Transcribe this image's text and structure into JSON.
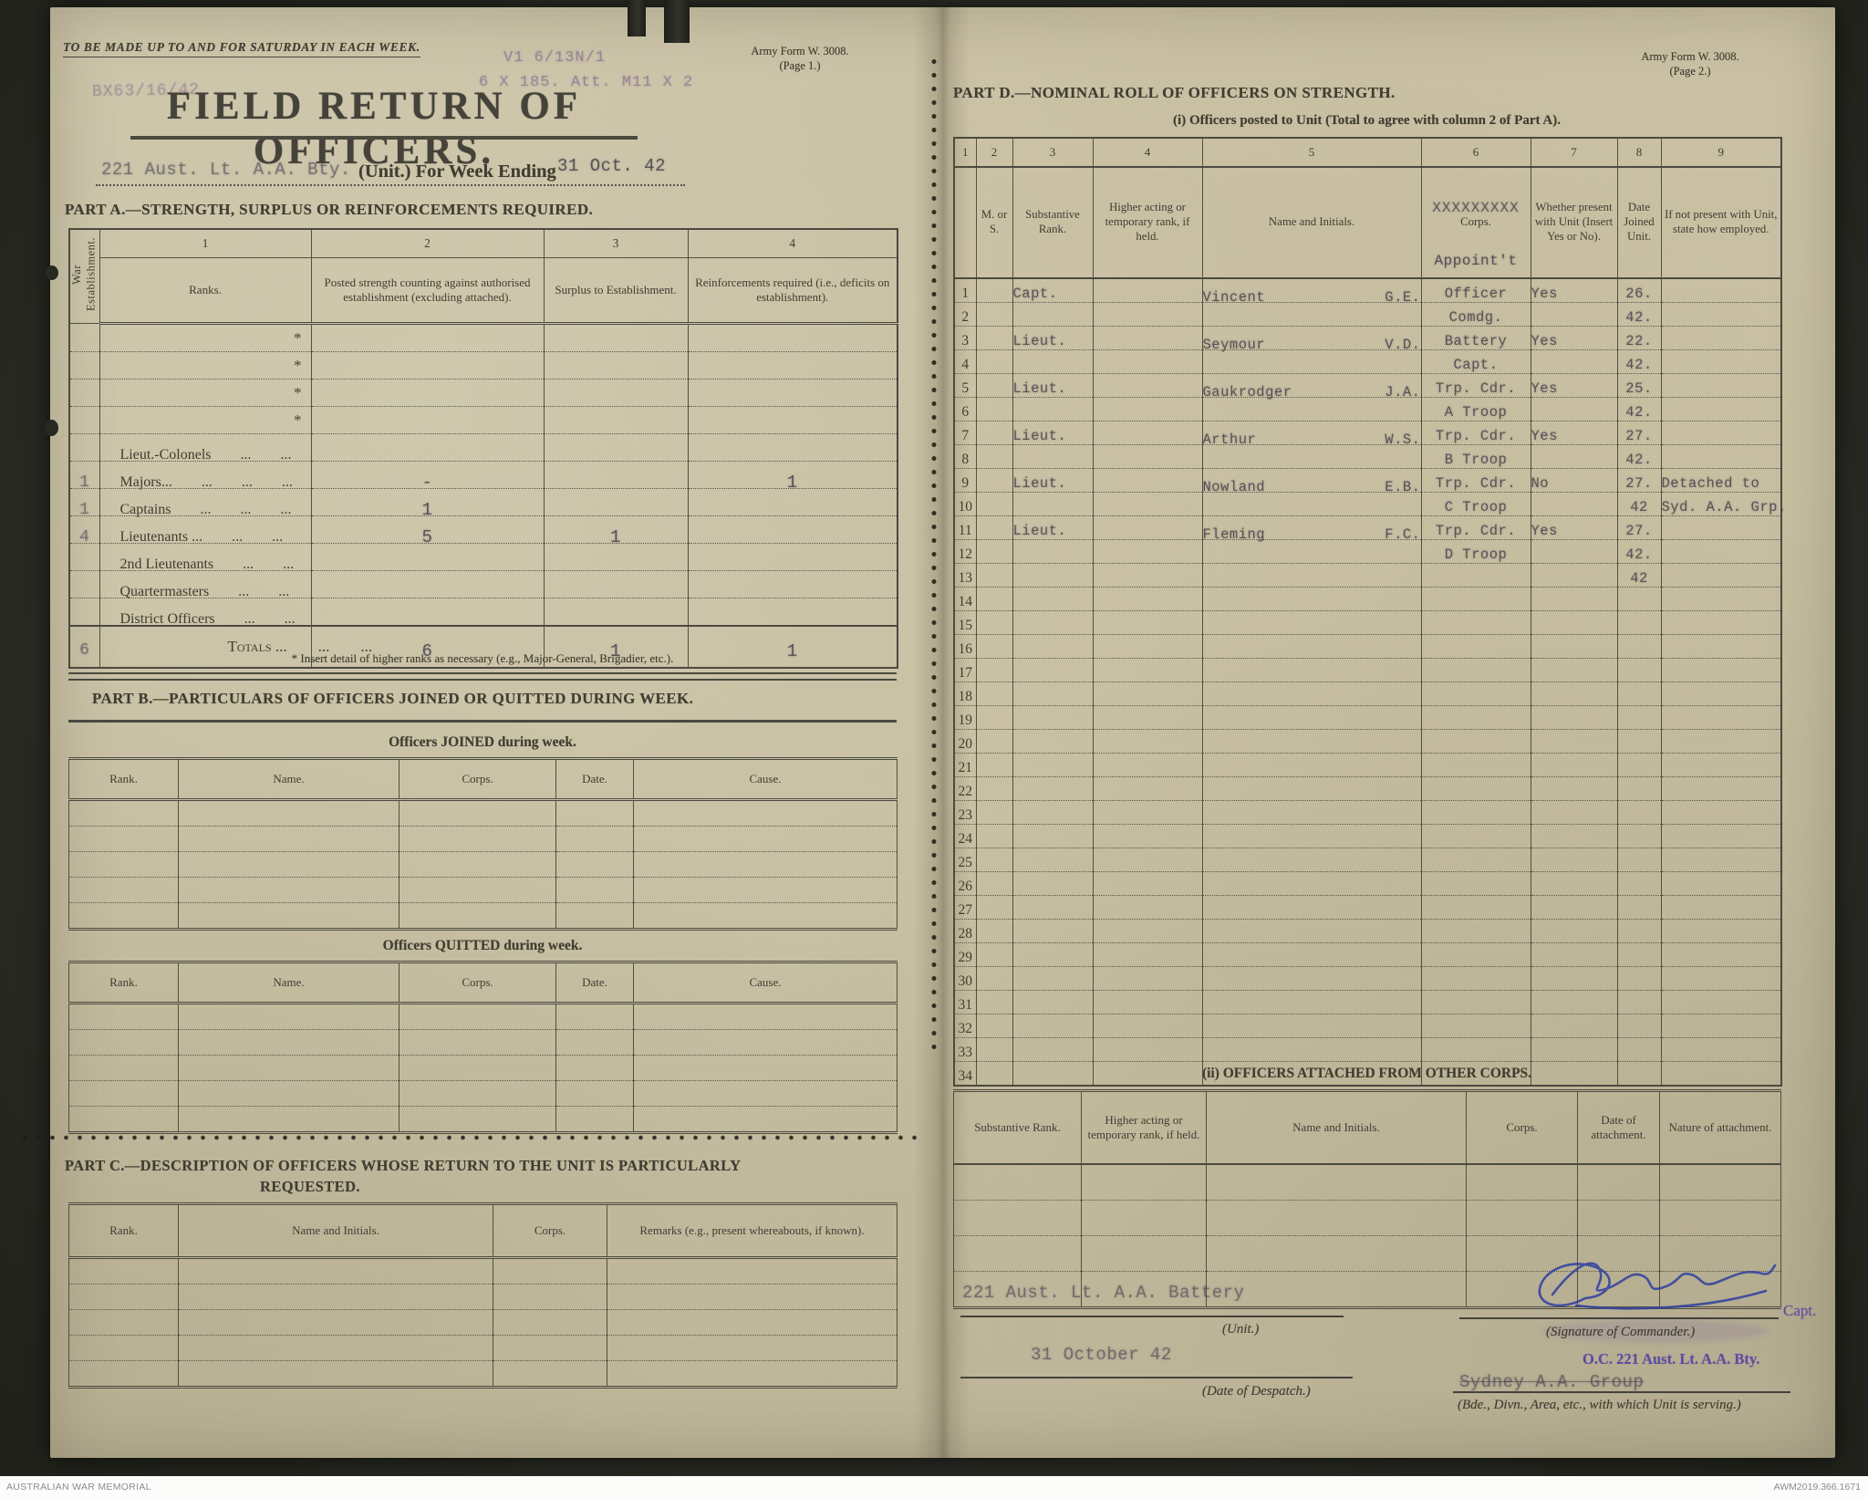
{
  "archive_bar": {
    "source": "AUSTRALIAN WAR MEMORIAL",
    "id": "AWM2019.366.1671"
  },
  "page1": {
    "form_ref": "Army Form W. 3008.",
    "form_page": "(Page 1.)",
    "top_note": "TO BE MADE UP TO AND FOR SATURDAY IN EACH WEEK.",
    "stamp_left": "BX63/16/42",
    "stamp_right_1": "V1 6/13N/1",
    "stamp_right_2": "6 X 185. Att. M11 X 2",
    "title": "FIELD RETURN OF OFFICERS.",
    "unit_value": "221 Aust. Lt. A.A. Bty.",
    "unit_label": "(Unit.) For Week Ending",
    "week_ending": "31 Oct. 42",
    "part_a": {
      "heading": "PART A.—STRENGTH, SURPLUS OR REINFORCEMENTS REQUIRED.",
      "war_establishment_label": "War Establishment.",
      "col_numbers": [
        "1",
        "2",
        "3",
        "4"
      ],
      "col_ranks": "Ranks.",
      "col_posted": "Posted strength counting against authorised establishment (excluding attached).",
      "col_surplus": "Surplus to Establishment.",
      "col_reinforcements": "Reinforcements required (i.e., deficits on establishment).",
      "rows": [
        {
          "we": "",
          "rank": "",
          "star": "*",
          "c2": "",
          "c3": "",
          "c4": ""
        },
        {
          "we": "",
          "rank": "",
          "star": "*",
          "c2": "",
          "c3": "",
          "c4": ""
        },
        {
          "we": "",
          "rank": "",
          "star": "*",
          "c2": "",
          "c3": "",
          "c4": ""
        },
        {
          "we": "",
          "rank": "",
          "star": "*",
          "c2": "",
          "c3": "",
          "c4": ""
        },
        {
          "we": "",
          "rank": "Lieut.-Colonels  ...  ...",
          "star": "",
          "c2": "",
          "c3": "",
          "c4": ""
        },
        {
          "we": "1",
          "rank": "Majors...  ...  ...  ...",
          "star": "",
          "c2": "-",
          "c3": "",
          "c4": "1"
        },
        {
          "we": "1",
          "rank": "Captains  ...  ...  ...",
          "star": "",
          "c2": "1",
          "c3": "",
          "c4": ""
        },
        {
          "we": "4",
          "rank": "Lieutenants ...  ...  ...",
          "star": "",
          "c2": "5",
          "c3": "1",
          "c4": ""
        },
        {
          "we": "",
          "rank": "2nd Lieutenants  ...  ...",
          "star": "",
          "c2": "",
          "c3": "",
          "c4": ""
        },
        {
          "we": "",
          "rank": "Quartermasters  ...  ...",
          "star": "",
          "c2": "",
          "c3": "",
          "c4": ""
        },
        {
          "we": "",
          "rank": "District Officers  ...  ...",
          "star": "",
          "c2": "",
          "c3": "",
          "c4": ""
        }
      ],
      "totals": {
        "we": "6",
        "label": "Totals ...  ...  ...",
        "c2": "6",
        "c3": "1",
        "c4": "1"
      },
      "footnote": "* Insert detail of higher ranks as necessary (e.g., Major-General, Brigadier, etc.)."
    },
    "part_b": {
      "heading": "PART B.—PARTICULARS OF OFFICERS JOINED OR QUITTED DURING WEEK.",
      "joined_title": "Officers JOINED during week.",
      "quitted_title": "Officers QUITTED during week.",
      "columns": [
        "Rank.",
        "Name.",
        "Corps.",
        "Date.",
        "Cause."
      ]
    },
    "part_c": {
      "heading_line1": "PART C.—DESCRIPTION OF OFFICERS WHOSE RETURN TO THE UNIT IS PARTICULARLY",
      "heading_line2": "REQUESTED.",
      "columns": [
        "Rank.",
        "Name and Initials.",
        "Corps.",
        "Remarks (e.g., present whereabouts, if known)."
      ]
    }
  },
  "page2": {
    "form_ref": "Army Form W. 3008.",
    "form_page": "(Page 2.)",
    "part_d": {
      "heading": "PART D.—NOMINAL ROLL OF OFFICERS ON STRENGTH.",
      "subheading": "(i) Officers posted to Unit (Total to agree with column 2 of Part A).",
      "col_numbers": [
        "1",
        "2",
        "3",
        "4",
        "5",
        "6",
        "7",
        "8",
        "9"
      ],
      "col_ms": "M. or S.",
      "col_substantive": "Substantive Rank.",
      "col_higher": "Higher acting or temporary rank, if held.",
      "col_name": "Name and Initials.",
      "col_corps": "Corps.",
      "corps_strike": "XXXXXXXXX",
      "corps_typed": "Appoint't",
      "col_present": "Whether present with Unit (Insert Yes or No).",
      "col_date": "Date Joined Unit.",
      "col_not_present": "If not present with Unit, state how employed.",
      "row_count": 34,
      "entries": [
        {
          "row": 1,
          "rank": "Capt.",
          "name": "Vincent",
          "initials": "G.E.",
          "appt": "Officer",
          "present": "Yes",
          "date": "26."
        },
        {
          "row": 2,
          "appt": "Comdg.",
          "date": "42."
        },
        {
          "row": 3,
          "rank": "Lieut.",
          "name": "Seymour",
          "initials": "V.D.",
          "appt": "Battery",
          "present": "Yes",
          "date": "22."
        },
        {
          "row": 4,
          "appt": "Capt.",
          "date": "42."
        },
        {
          "row": 5,
          "rank": "Lieut.",
          "name": "Gaukrodger",
          "initials": "J.A.",
          "appt": "Trp. Cdr.",
          "present": "Yes",
          "date": "25."
        },
        {
          "row": 6,
          "appt": "A Troop",
          "date": "42."
        },
        {
          "row": 7,
          "rank": "Lieut.",
          "name": "Arthur",
          "initials": "W.S.",
          "appt": "Trp. Cdr.",
          "present": "Yes",
          "date": "27."
        },
        {
          "row": 8,
          "appt": "B Troop",
          "date": "42."
        },
        {
          "row": 9,
          "rank": "Lieut.",
          "name": "Nowland",
          "initials": "E.B.",
          "appt": "Trp. Cdr.",
          "present": "No",
          "date": "27.",
          "remark": "Detached to"
        },
        {
          "row": 10,
          "appt": "C Troop",
          "date": "42",
          "remark": "Syd. A.A. Grp."
        },
        {
          "row": 11,
          "rank": "Lieut.",
          "name": "Fleming",
          "initials": "F.C.",
          "appt": "Trp. Cdr.",
          "present": "Yes",
          "date": "27."
        },
        {
          "row": 12,
          "appt": "D Troop",
          "date": "42."
        },
        {
          "row": 13,
          "date": "42"
        }
      ]
    },
    "part_d2": {
      "heading": "(ii) OFFICERS ATTACHED FROM OTHER CORPS.",
      "columns": [
        "Substantive Rank.",
        "Higher acting or temporary rank, if held.",
        "Name and Initials.",
        "Corps.",
        "Date of attachment.",
        "Nature of attachment."
      ],
      "row_count": 4
    },
    "footer": {
      "unit_value": "221 Aust. Lt. A.A. Battery",
      "unit_label": "(Unit.)",
      "despatch_value": "31 October 42",
      "despatch_label": "(Date of Despatch.)",
      "signature_rank": "Capt.",
      "signature_label": "(Signature of Commander.)",
      "oc_line": "O.C. 221 Aust. Lt. A.A. Bty.",
      "serving_value": "Sydney A.A. Group",
      "serving_label": "(Bde., Divn., Area, etc., with which Unit is serving.)"
    }
  },
  "colors": {
    "paper": "#c9c1a3",
    "ink": "#403d31",
    "typed": "#403b49",
    "stamp_purple": "#80648c",
    "signature_blue": "#2f3f9f",
    "backdrop": "#2a2c25"
  }
}
